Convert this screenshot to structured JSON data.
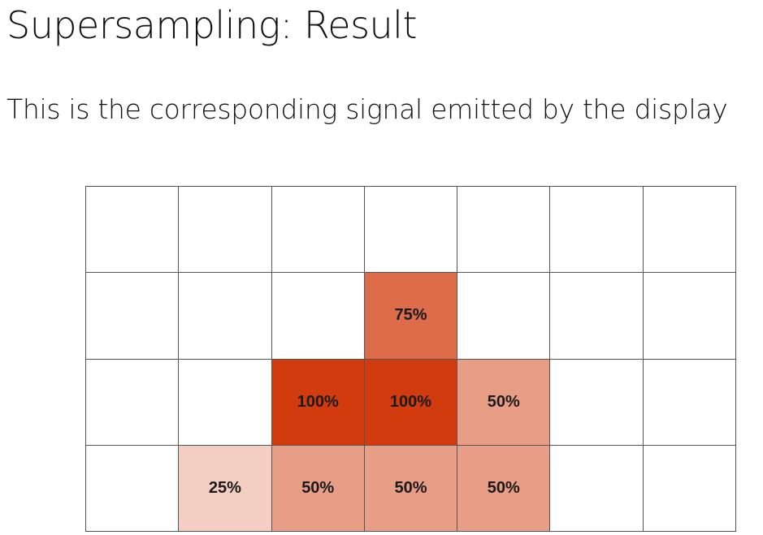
{
  "slide": {
    "title": "Supersampling: Result",
    "subtitle": "This is the corresponding signal emitted by the display"
  },
  "pixel_grid": {
    "columns": 7,
    "rows": 4,
    "base_color": "#d13b0e",
    "empty_color": "#ffffff",
    "line_color": "#555555",
    "cells": [
      [
        null,
        null,
        null,
        null,
        null,
        null,
        null
      ],
      [
        null,
        null,
        null,
        {
          "label": "75%",
          "coverage": 0.75
        },
        null,
        null,
        null
      ],
      [
        null,
        null,
        {
          "label": "100%",
          "coverage": 1.0
        },
        {
          "label": "100%",
          "coverage": 1.0
        },
        {
          "label": "50%",
          "coverage": 0.5
        },
        null,
        null
      ],
      [
        null,
        {
          "label": "25%",
          "coverage": 0.25
        },
        {
          "label": "50%",
          "coverage": 0.5
        },
        {
          "label": "50%",
          "coverage": 0.5
        },
        {
          "label": "50%",
          "coverage": 0.5
        },
        null,
        null
      ]
    ]
  }
}
